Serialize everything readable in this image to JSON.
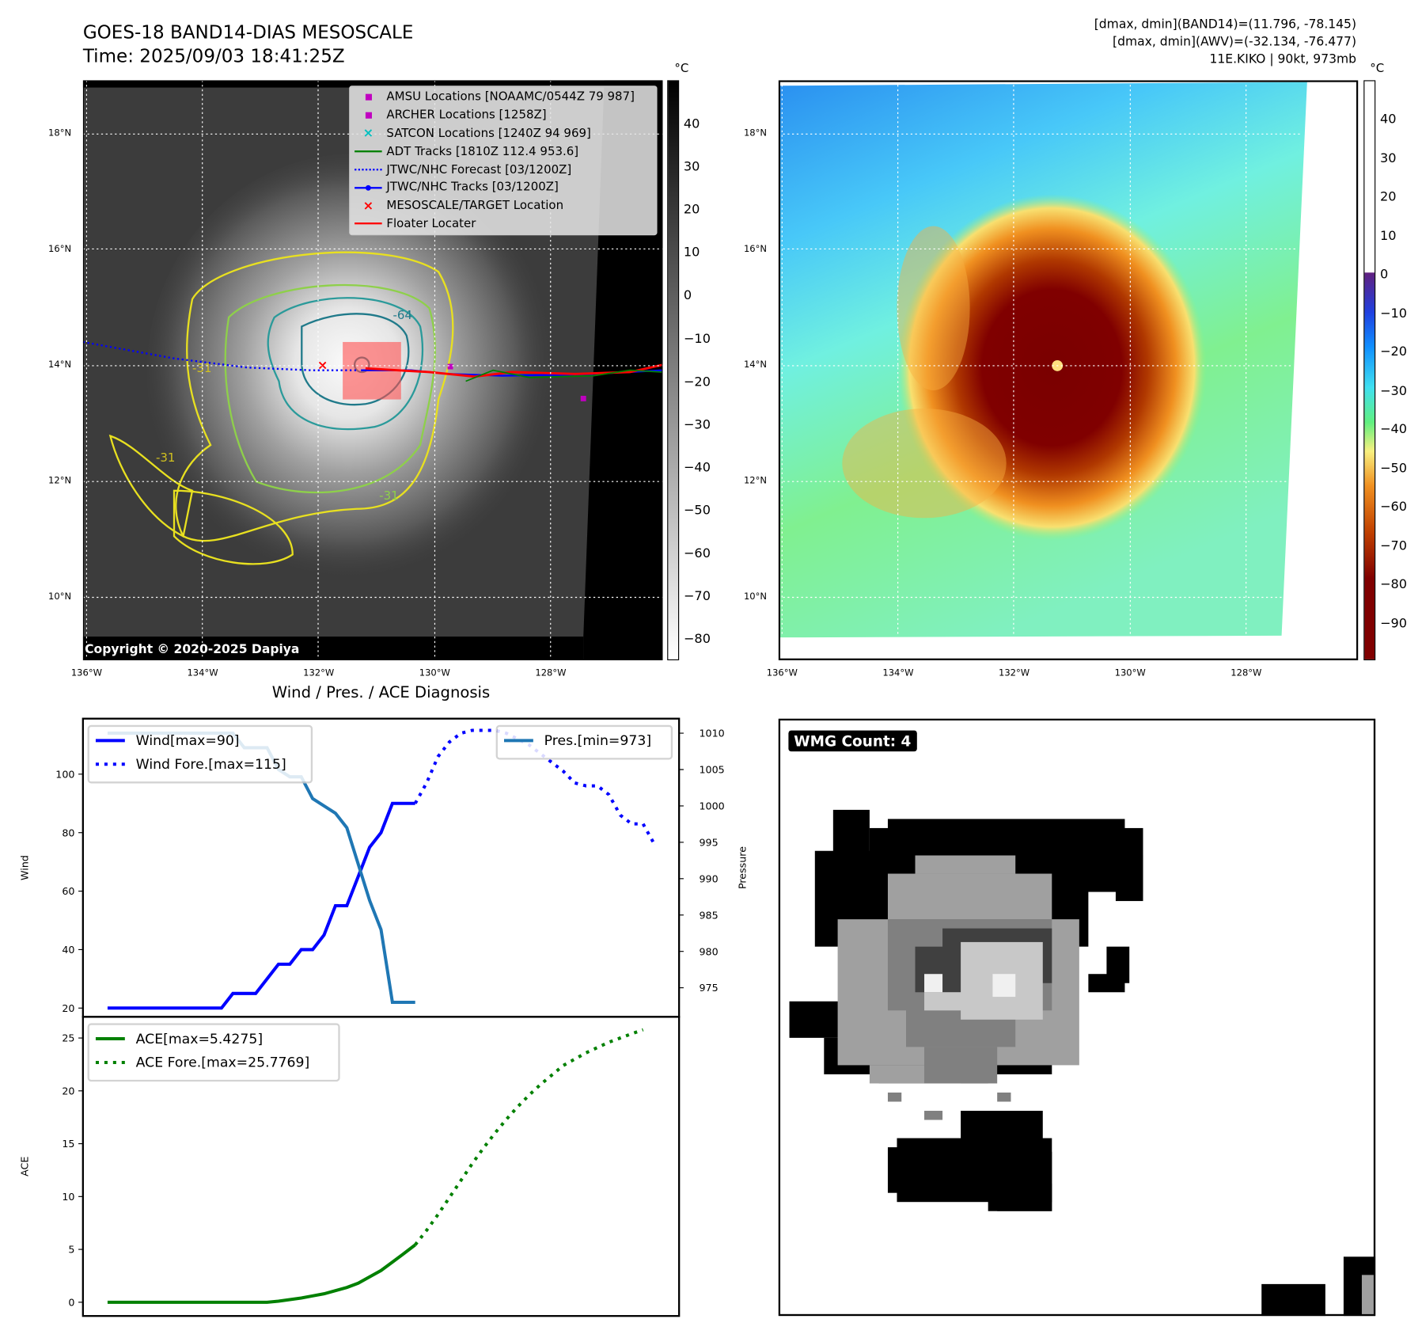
{
  "header": {
    "title": "GOES-18 BAND14-DIAS MESOSCALE",
    "time": "Time: 2025/09/03 18:41:25Z",
    "info_line1": "[dmax, dmin](BAND14)=(11.796, -78.145)",
    "info_line2": "[dmax, dmin](AWV)=(-32.134, -76.477)",
    "info_line3": "11E.KIKO | 90kt, 973mb"
  },
  "maps": {
    "unit": "°C",
    "lat_labels": [
      "18°N",
      "16°N",
      "14°N",
      "12°N",
      "10°N"
    ],
    "lon_labels": [
      "136°W",
      "134°W",
      "132°W",
      "130°W",
      "128°W"
    ],
    "left_colorbar_ticks": [
      "40",
      "30",
      "20",
      "10",
      "0",
      "−10",
      "−20",
      "−30",
      "−40",
      "−50",
      "−60",
      "−70",
      "−80"
    ],
    "right_colorbar_ticks": [
      "40",
      "30",
      "20",
      "10",
      "0",
      "−10",
      "−20",
      "−30",
      "−40",
      "−50",
      "−60",
      "−70",
      "−80",
      "−90"
    ],
    "contour_labels": [
      "-64",
      "-31",
      "-31",
      "-31"
    ],
    "copyright": "Copyright © 2020-2025 Dapiya",
    "legend": [
      {
        "label": "AMSU Locations [NOAAMC/0544Z 79 987]",
        "color": "#c000c0",
        "icon": "square-marker"
      },
      {
        "label": "ARCHER Locations [1258Z]",
        "color": "#c000c0",
        "icon": "square-marker"
      },
      {
        "label": "SATCON Locations [1240Z 94 969]",
        "color": "#00c0c0",
        "icon": "x-marker"
      },
      {
        "label": "ADT Tracks [1810Z 112.4 953.6]",
        "color": "#008000",
        "icon": "line"
      },
      {
        "label": "JTWC/NHC Forecast [03/1200Z]",
        "color": "#0000ff",
        "icon": "dotted-line"
      },
      {
        "label": "JTWC/NHC Tracks [03/1200Z]",
        "color": "#0000ff",
        "icon": "line-dot"
      },
      {
        "label": "MESOSCALE/TARGET Location",
        "color": "#ff0000",
        "icon": "x-marker"
      },
      {
        "label": "Floater Locater",
        "color": "#ff0000",
        "icon": "line"
      }
    ]
  },
  "wmg": {
    "label": "WMG Count: 4"
  },
  "chart_data": [
    {
      "type": "line",
      "title": "Wind / Pres. / ACE Diagnosis",
      "ylabel": "Wind",
      "y2label": "Pressure",
      "ylim": [
        17,
        119
      ],
      "y2lim": [
        971,
        1012
      ],
      "yticks": [
        "20",
        "40",
        "60",
        "80",
        "100"
      ],
      "y2ticks": [
        "975",
        "980",
        "985",
        "990",
        "995",
        "1000",
        "1005",
        "1010"
      ],
      "series": [
        {
          "name": "Wind[max=90]",
          "color": "#0000ff",
          "style": "solid",
          "axis": "left",
          "x_start": 0,
          "values": [
            20,
            20,
            20,
            20,
            20,
            20,
            20,
            20,
            20,
            20,
            20,
            25,
            25,
            25,
            30,
            35,
            35,
            40,
            40,
            45,
            55,
            55,
            65,
            75,
            80,
            90,
            90,
            90
          ]
        },
        {
          "name": "Wind Fore.[max=115]",
          "color": "#0000ff",
          "style": "dotted",
          "axis": "left",
          "x_start": 27,
          "values": [
            90,
            97,
            106,
            111,
            114,
            115,
            115,
            115,
            114,
            112,
            110,
            107,
            104,
            101,
            97,
            96,
            96,
            93,
            86,
            83,
            83,
            76
          ]
        },
        {
          "name": "Pres.[min=973]",
          "color": "#1f77b4",
          "style": "solid",
          "axis": "right",
          "x_start": 0,
          "values": [
            1010,
            1010,
            1010,
            1010,
            1010,
            1010,
            1010,
            1010,
            1010,
            1010,
            1010,
            1010,
            1008,
            1008,
            1008,
            1005,
            1004,
            1004,
            1001,
            1000,
            999,
            997,
            992,
            987,
            983,
            973,
            973,
            973
          ]
        }
      ]
    },
    {
      "type": "line",
      "ylabel": "ACE",
      "ylim": [
        -1.3,
        27
      ],
      "yticks": [
        "0",
        "5",
        "10",
        "15",
        "20",
        "25"
      ],
      "series": [
        {
          "name": "ACE[max=5.4275]",
          "color": "#008000",
          "style": "solid",
          "x_start": 0,
          "values": [
            0,
            0,
            0,
            0,
            0,
            0,
            0,
            0,
            0,
            0,
            0,
            0,
            0,
            0,
            0,
            0.1,
            0.25,
            0.4,
            0.6,
            0.8,
            1.1,
            1.4,
            1.8,
            2.4,
            3.0,
            3.8,
            4.6,
            5.43
          ]
        },
        {
          "name": "ACE Fore.[max=25.7769]",
          "color": "#008000",
          "style": "dotted",
          "x_start": 27,
          "values": [
            5.43,
            6.8,
            8.3,
            9.9,
            11.5,
            13.1,
            14.6,
            16.0,
            17.3,
            18.5,
            19.6,
            20.6,
            21.5,
            22.4,
            23.0,
            23.6,
            24.1,
            24.6,
            25.0,
            25.4,
            25.78
          ]
        }
      ]
    }
  ]
}
